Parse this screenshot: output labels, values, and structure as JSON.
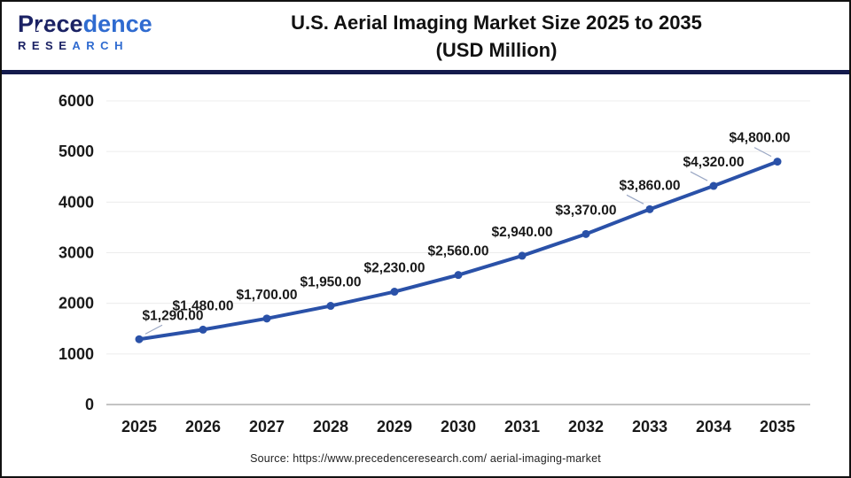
{
  "header": {
    "logo_line1": "Precedence",
    "logo_line2": "RESEARCH",
    "title_line1": "U.S. Aerial Imaging Market Size 2025 to 2035",
    "title_line2": "(USD Million)"
  },
  "chart_data": {
    "type": "line",
    "title": "U.S. Aerial Imaging Market Size 2025 to 2035 (USD Million)",
    "categories": [
      "2025",
      "2026",
      "2027",
      "2028",
      "2029",
      "2030",
      "2031",
      "2032",
      "2033",
      "2034",
      "2035"
    ],
    "series": [
      {
        "name": "U.S. Aerial Imaging Market Size (USD Million)",
        "values": [
          1290,
          1480,
          1700,
          1950,
          2230,
          2560,
          2940,
          3370,
          3860,
          4320,
          4800
        ]
      }
    ],
    "point_labels": [
      "$1,290.00",
      "$1,480.00",
      "$1,700.00",
      "$1,950.00",
      "$2,230.00",
      "$2,560.00",
      "$2,940.00",
      "$3,370.00",
      "$3,860.00",
      "$4,320.00",
      "$4,800.00"
    ],
    "xlabel": "",
    "ylabel": "",
    "ylim": [
      0,
      6000
    ],
    "yticks": [
      0,
      1000,
      2000,
      3000,
      4000,
      5000,
      6000
    ],
    "grid": true,
    "legend": "none",
    "line_color": "#2a51a8",
    "marker_color": "#2a51a8",
    "grid_color": "#ececec",
    "axis_color": "#b0b0b0",
    "label_color": "#1a1a1a"
  },
  "footer": {
    "source": "Source: https://www.precedenceresearch.com/ aerial-imaging-market"
  }
}
